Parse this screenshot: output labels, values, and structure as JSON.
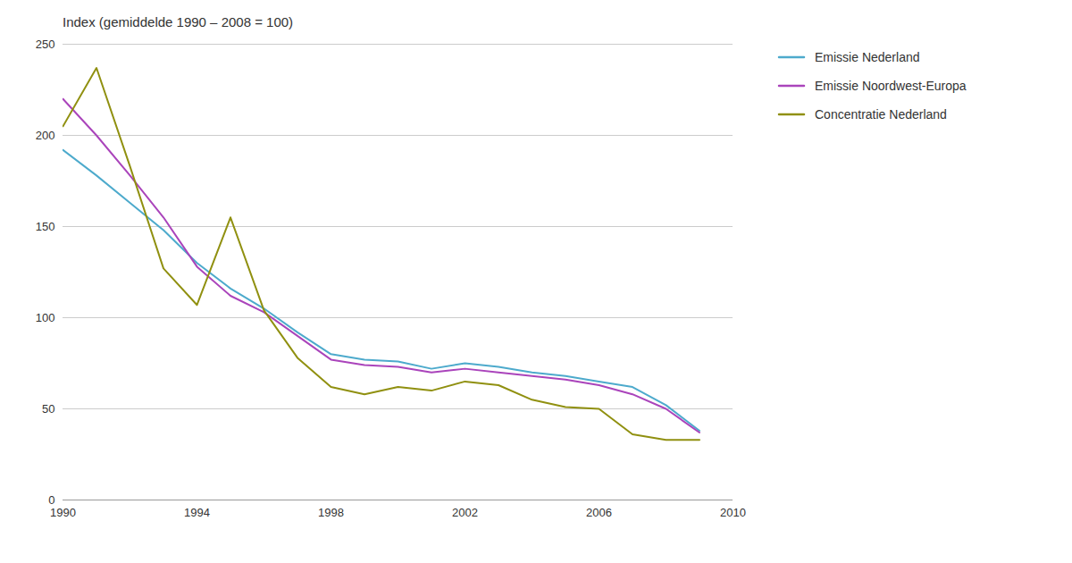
{
  "chart_data": {
    "type": "line",
    "title": "Index (gemiddelde 1990 – 2008 = 100)",
    "x": [
      1990,
      1991,
      1992,
      1993,
      1994,
      1995,
      1996,
      1997,
      1998,
      1999,
      2000,
      2001,
      2002,
      2003,
      2004,
      2005,
      2006,
      2007,
      2008,
      2009
    ],
    "series": [
      {
        "name": "Emissie Nederland",
        "color": "#4daacc",
        "values": [
          192,
          178,
          163,
          148,
          130,
          116,
          105,
          92,
          80,
          77,
          76,
          72,
          75,
          73,
          70,
          68,
          65,
          62,
          52,
          38
        ]
      },
      {
        "name": "Emissie Noordwest-Europa",
        "color": "#aa44bb",
        "values": [
          220,
          200,
          178,
          155,
          128,
          112,
          103,
          90,
          77,
          74,
          73,
          70,
          72,
          70,
          68,
          66,
          63,
          58,
          50,
          37
        ]
      },
      {
        "name": "Concentratie Nederland",
        "color": "#909010",
        "values": [
          205,
          237,
          183,
          127,
          107,
          155,
          104,
          78,
          62,
          58,
          62,
          60,
          65,
          63,
          55,
          51,
          50,
          36,
          33,
          33
        ]
      }
    ],
    "xlim": [
      1990,
      2010
    ],
    "ylim": [
      0,
      250
    ],
    "xticks": [
      1990,
      1994,
      1998,
      2002,
      2006,
      2010
    ],
    "yticks": [
      0,
      50,
      100,
      150,
      200,
      250
    ],
    "grid": "y",
    "legend": "right"
  }
}
